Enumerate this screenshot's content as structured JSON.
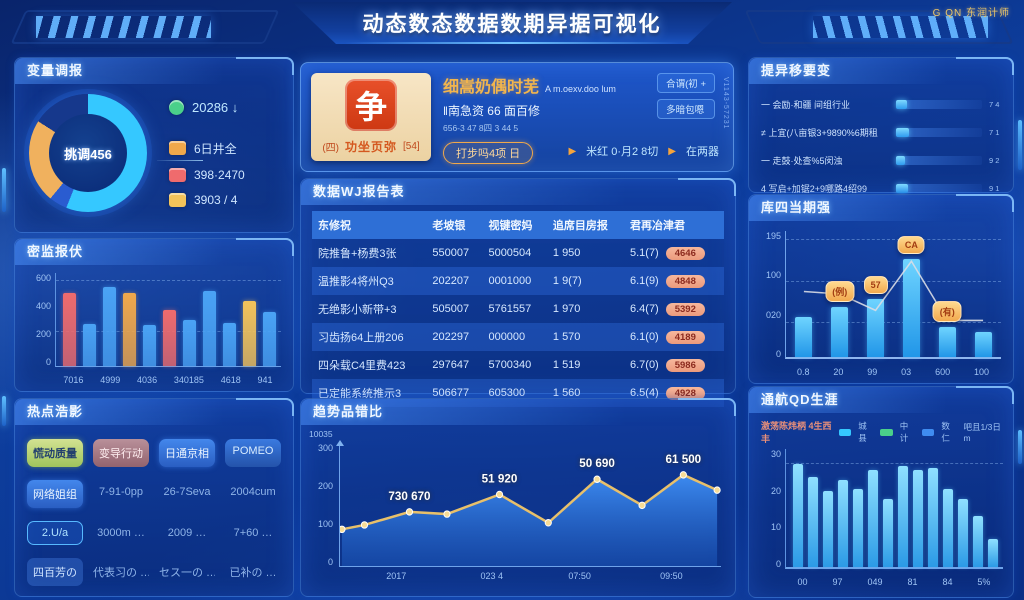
{
  "header": {
    "title": "动态数态数据数期异据可视化",
    "logo_text": "G QN 东润计师"
  },
  "left_donut": {
    "title": "变量调报",
    "center_label": "挑调456",
    "chart_data": {
      "type": "pie",
      "slices": [
        {
          "label": "cyan",
          "color": "#35c8ff",
          "value": 56
        },
        {
          "label": "mid-blue",
          "color": "#2a5cd0",
          "value": 5
        },
        {
          "label": "orange",
          "color": "#f0b15e",
          "value": 23
        },
        {
          "label": "navy",
          "color": "#16388c",
          "value": 16
        }
      ]
    },
    "legend": [
      {
        "color": "#4ad08a",
        "text": "20286 ↓"
      },
      {
        "color": "#f0a84b",
        "text": "6日井全"
      },
      {
        "color": "#ef6b6d",
        "text": "398·2470"
      },
      {
        "color": "#f3c35a",
        "text": "3903 / 4"
      }
    ]
  },
  "left_bars": {
    "title": "密监报伏",
    "chart_data": {
      "type": "bar",
      "yticks": [
        "600",
        "400",
        "200",
        "0"
      ],
      "categories": [
        "7016",
        "4999",
        "4036",
        "340185",
        "4618",
        "941"
      ],
      "bars": [
        {
          "v": 78,
          "c": "#ef6b6d"
        },
        {
          "v": 45,
          "c": "#4aa3f5"
        },
        {
          "v": 85,
          "c": "#4aa3f5"
        },
        {
          "v": 79,
          "c": "#f0a84b"
        },
        {
          "v": 44,
          "c": "#4aa3f5"
        },
        {
          "v": 60,
          "c": "#ef6b6d"
        },
        {
          "v": 50,
          "c": "#4aa3f5"
        },
        {
          "v": 81,
          "c": "#4aa3f5"
        },
        {
          "v": 46,
          "c": "#4aa3f5"
        },
        {
          "v": 70,
          "c": "#f3c35a"
        },
        {
          "v": 58,
          "c": "#4aa3f5"
        }
      ]
    }
  },
  "hot_tags": {
    "title": "热点浩影",
    "cells": [
      {
        "t": "慌动质量",
        "s": "pill-green"
      },
      {
        "t": "变导行动",
        "s": "pill-mauve"
      },
      {
        "t": "日通京相",
        "s": "pill-blue"
      },
      {
        "t": "POMEO",
        "s": "pill-blue2"
      },
      {
        "t": "网络姐组",
        "s": "pill-blue"
      },
      {
        "t": "7-91-0pp",
        "s": "plain"
      },
      {
        "t": "26-7Seva",
        "s": "plain"
      },
      {
        "t": "2004cum",
        "s": "plain"
      },
      {
        "t": "2.U/a",
        "s": "pill-outline"
      },
      {
        "t": "3000m …",
        "s": "plain"
      },
      {
        "t": "2009 …",
        "s": "plain"
      },
      {
        "t": "7+60 …",
        "s": "plain"
      },
      {
        "t": "四百芳の",
        "s": "pill-dim"
      },
      {
        "t": "代表习の …",
        "s": "plain"
      },
      {
        "t": "セス一の …",
        "s": "plain"
      },
      {
        "t": "已补の …",
        "s": "plain"
      }
    ]
  },
  "info_card": {
    "stamp_char": "争",
    "stamp_left": "(四)",
    "stamp_caption": "功坐页弥",
    "stamp_right": "[54]",
    "title": "细嵩奶偶时芜",
    "title_suffix": "A m.oexv.doo lum",
    "line2": "‖南急资 66 面百修",
    "line3": "656-3 47 8四 3 44 5",
    "cta": "打步吗4项 日",
    "btn1": "合谓(初 +",
    "btn2": "多暗包嗯",
    "link1": "米红 0·月2 8切",
    "link2": "在两器",
    "side_text": "V1143-57231"
  },
  "data_table": {
    "title": "数据WJ报告表",
    "columns": [
      "东修祝",
      "老坡银",
      "视键密妈",
      "追席目房报",
      "君再冶津君"
    ],
    "rows": [
      {
        "name": "院推鲁+杨费3张",
        "c1": "550007",
        "c2": "5000504",
        "c3": "1 950",
        "c4": "5.1(7)",
        "badge": "4646"
      },
      {
        "name": "温推影4将州Q3",
        "c1": "202207",
        "c2": "0001000",
        "c3": "1 9(7)",
        "c4": "6.1(9)",
        "badge": "4848"
      },
      {
        "name": "无绝影小新带+3",
        "c1": "505007",
        "c2": "5761557",
        "c3": "1 970",
        "c4": "6.4(7)",
        "badge": "5392"
      },
      {
        "name": "习齿扬64上册206",
        "c1": "202297",
        "c2": "000000",
        "c3": "1 570",
        "c4": "6.1(0)",
        "badge": "4189"
      },
      {
        "name": "四朵载C4里费423",
        "c1": "297647",
        "c2": "5700340",
        "c3": "1 519",
        "c4": "6.7(0)",
        "badge": "5986"
      },
      {
        "name": "已定能系统推示3",
        "c1": "506677",
        "c2": "605300",
        "c3": "1 560",
        "c4": "6.5(4)",
        "badge": "4928"
      }
    ]
  },
  "trend_chart": {
    "title": "趋势品错比",
    "unit": "10035",
    "chart_data": {
      "type": "area",
      "yticks": [
        "300",
        "200",
        "100",
        "0"
      ],
      "xlabels": [
        {
          "x": 15,
          "text": "2017"
        },
        {
          "x": 40,
          "text": "023 4"
        },
        {
          "x": 63,
          "text": "07:50"
        },
        {
          "x": 87,
          "text": "09:50"
        }
      ],
      "points": [
        {
          "x": 0,
          "v": 30
        },
        {
          "x": 6,
          "v": 34
        },
        {
          "x": 18,
          "v": 46
        },
        {
          "x": 28,
          "v": 44
        },
        {
          "x": 42,
          "v": 62
        },
        {
          "x": 55,
          "v": 36
        },
        {
          "x": 68,
          "v": 76
        },
        {
          "x": 80,
          "v": 52
        },
        {
          "x": 91,
          "v": 80
        },
        {
          "x": 100,
          "v": 66
        }
      ],
      "labels": [
        {
          "x": 18,
          "v": 46,
          "text": "730 670"
        },
        {
          "x": 42,
          "v": 62,
          "text": "51 920"
        },
        {
          "x": 68,
          "v": 76,
          "text": "50 690"
        },
        {
          "x": 91,
          "v": 80,
          "text": "61 500"
        }
      ],
      "line_color": "#e8c06a"
    }
  },
  "rank_panel": {
    "title": "提异移要变",
    "rows": [
      {
        "label": "一 会励·和疆 间组行业",
        "pct": 13,
        "value": "7 4"
      },
      {
        "label": "≠ 上宜(八亩银3+9890%6期租",
        "pct": 15,
        "value": "7 1"
      },
      {
        "label": "一 走鼓·处查%5闵浊",
        "pct": 11,
        "value": "9 2"
      },
      {
        "label": "4 写启+加锯2+9哪路4绍99",
        "pct": 14,
        "value": "9 1"
      }
    ]
  },
  "combo_chart": {
    "title": "库四当期强",
    "chart_data": {
      "type": "bar+line",
      "yticks": [
        "195",
        "100",
        "020",
        "0"
      ],
      "categories": [
        "0.8",
        "20",
        "99",
        "03",
        "600",
        "100"
      ],
      "bars": [
        32,
        40,
        46,
        78,
        24,
        20
      ],
      "line": [
        52,
        50,
        37,
        76,
        29,
        29
      ],
      "chips": [
        {
          "i": 1,
          "text": "(例)"
        },
        {
          "i": 2,
          "text": "57"
        },
        {
          "i": 3,
          "text": "CA"
        },
        {
          "i": 4,
          "text": "(有)"
        }
      ],
      "line_color": "#d9dde6"
    }
  },
  "bottom_chart": {
    "title": "通航QD生涯",
    "subtitle": "激荡陈炜柄 4生西丰",
    "legend": [
      {
        "color": "#35c8ff",
        "label": "城县"
      },
      {
        "color": "#4ad08a",
        "label": "中计"
      },
      {
        "color": "#3f8cf0",
        "label": "数仁"
      }
    ],
    "legend_suffix": "吧且1/3日m",
    "chart_data": {
      "type": "bar",
      "yticks": [
        "30",
        "20",
        "10",
        "0"
      ],
      "categories": [
        "00",
        "97",
        "049",
        "81",
        "84",
        "5%"
      ],
      "values": [
        87,
        76,
        64,
        74,
        66,
        82,
        58,
        86,
        82,
        84,
        66,
        58,
        43,
        24
      ]
    }
  }
}
